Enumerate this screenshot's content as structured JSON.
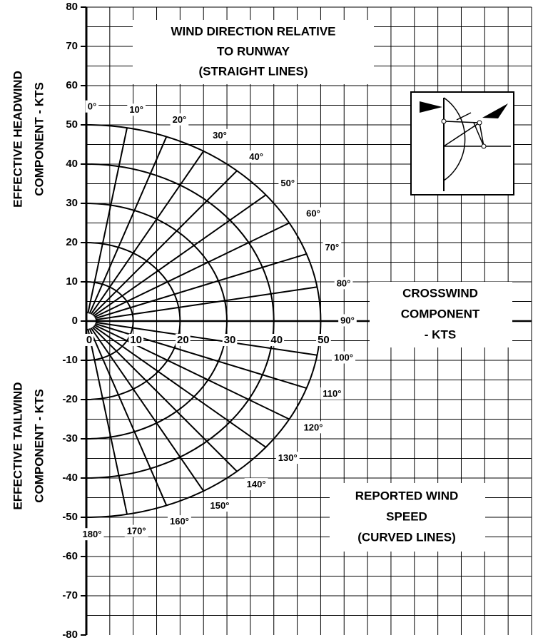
{
  "chart_data": {
    "type": "crosswind",
    "title_lines": [
      "WIND DIRECTION RELATIVE",
      "TO RUNWAY",
      "(STRAIGHT LINES)"
    ],
    "x_label_lines": [
      "CROSSWIND",
      "COMPONENT",
      "- KTS"
    ],
    "speed_label_lines": [
      "REPORTED WIND",
      "SPEED",
      "(CURVED LINES)"
    ],
    "y_label_headwind": [
      "EFFECTIVE HEADWIND",
      "COMPONENT - KTS"
    ],
    "y_label_tailwind": [
      "EFFECTIVE TAILWIND",
      "COMPONENT - KTS"
    ],
    "xlim": [
      0,
      95
    ],
    "ylim": [
      -80,
      80
    ],
    "xticks": [
      0,
      10,
      20,
      30,
      40,
      50
    ],
    "yticks": [
      -80,
      -70,
      -60,
      -50,
      -40,
      -30,
      -20,
      -10,
      0,
      10,
      20,
      30,
      40,
      50,
      60,
      70,
      80
    ],
    "xgrid": [
      5,
      10,
      15,
      20,
      25,
      30,
      35,
      40,
      45,
      50,
      55,
      60,
      65,
      70,
      75,
      80,
      85,
      90,
      95
    ],
    "ygrid": [
      -75,
      -70,
      -65,
      -60,
      -55,
      -50,
      -45,
      -40,
      -35,
      -30,
      -25,
      -20,
      -15,
      -10,
      -5,
      5,
      10,
      15,
      20,
      25,
      30,
      35,
      40,
      45,
      50,
      55,
      60,
      65,
      70,
      75,
      80
    ],
    "speeds": [
      10,
      20,
      30,
      40,
      50
    ],
    "directions": [
      {
        "value": 0,
        "label": "0°"
      },
      {
        "value": 10,
        "label": "10°"
      },
      {
        "value": 20,
        "label": "20°"
      },
      {
        "value": 30,
        "label": "30°"
      },
      {
        "value": 40,
        "label": "40°"
      },
      {
        "value": 50,
        "label": "50°"
      },
      {
        "value": 60,
        "label": "60°"
      },
      {
        "value": 70,
        "label": "70°"
      },
      {
        "value": 80,
        "label": "80°"
      },
      {
        "value": 90,
        "label": "90°"
      },
      {
        "value": 100,
        "label": "100°"
      },
      {
        "value": 110,
        "label": "110°"
      },
      {
        "value": 120,
        "label": "120°"
      },
      {
        "value": 130,
        "label": "130°"
      },
      {
        "value": 140,
        "label": "140°"
      },
      {
        "value": 150,
        "label": "150°"
      },
      {
        "value": 160,
        "label": "160°"
      },
      {
        "value": 170,
        "label": "170°"
      },
      {
        "value": 180,
        "label": "180°"
      }
    ]
  }
}
